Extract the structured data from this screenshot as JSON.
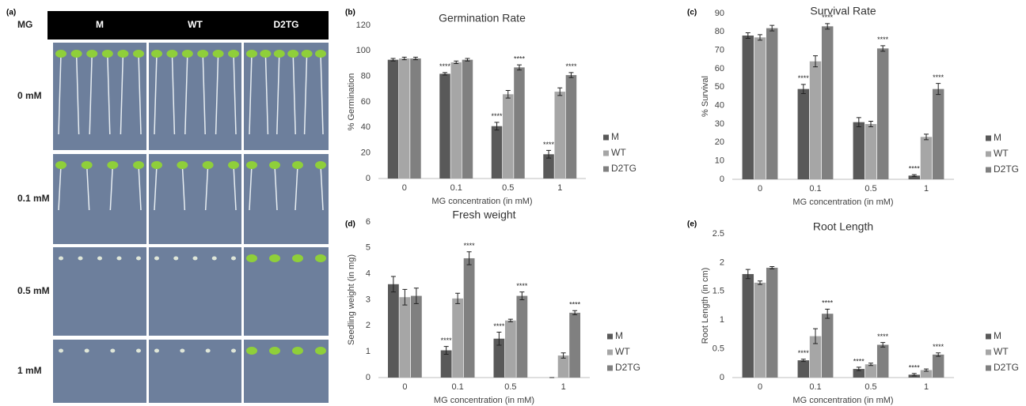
{
  "photo_panel": {
    "label": "(a)",
    "corner": "MG",
    "columns": [
      "M",
      "WT",
      "D2TG"
    ],
    "rows": [
      "0 mM",
      "0.1 mM",
      "0.5 mM",
      "1 mM"
    ]
  },
  "chart_data": [
    {
      "type": "bar",
      "panel_label": "(b)",
      "title": "Germination Rate",
      "x_label": "MG concentration (in mM)",
      "y_label": "% Germination",
      "categories": [
        "0",
        "0.1",
        "0.5",
        "1"
      ],
      "series": [
        {
          "name": "M",
          "color": "#595959",
          "values": [
            93,
            82,
            41,
            19
          ],
          "errors": [
            1,
            1,
            3,
            3
          ],
          "significance": [
            null,
            "****",
            "****",
            "****"
          ]
        },
        {
          "name": "WT",
          "color": "#a6a6a6",
          "values": [
            94,
            91,
            66,
            68
          ],
          "errors": [
            1,
            1,
            3,
            3
          ],
          "significance": [
            null,
            null,
            null,
            null
          ]
        },
        {
          "name": "D2TG",
          "color": "#808080",
          "values": [
            94,
            93,
            87,
            81
          ],
          "errors": [
            1,
            1,
            2,
            2
          ],
          "significance": [
            null,
            null,
            "****",
            "****"
          ]
        }
      ],
      "ylim": [
        0,
        120
      ],
      "yticks": [
        0,
        20,
        40,
        60,
        80,
        100,
        120
      ],
      "grid": false,
      "legend": "right"
    },
    {
      "type": "bar",
      "panel_label": "(c)",
      "title": "Survival Rate",
      "x_label": "MG concentration (in mM)",
      "y_label": "% Survival",
      "categories": [
        "0",
        "0.1",
        "0.5",
        "1"
      ],
      "series": [
        {
          "name": "M",
          "color": "#595959",
          "values": [
            78,
            49,
            31,
            2
          ],
          "errors": [
            1.5,
            2.5,
            2.5,
            0.5
          ],
          "significance": [
            null,
            "****",
            null,
            "****"
          ]
        },
        {
          "name": "WT",
          "color": "#a6a6a6",
          "values": [
            77,
            64,
            30,
            23
          ],
          "errors": [
            1.5,
            3,
            1.5,
            1.5
          ],
          "significance": [
            null,
            null,
            null,
            null
          ]
        },
        {
          "name": "D2TG",
          "color": "#808080",
          "values": [
            82,
            83,
            71,
            49
          ],
          "errors": [
            1.5,
            1.5,
            1.5,
            3
          ],
          "significance": [
            null,
            "****",
            "****",
            "****"
          ]
        }
      ],
      "ylim": [
        0,
        90
      ],
      "yticks": [
        0,
        10,
        20,
        30,
        40,
        50,
        60,
        70,
        80,
        90
      ],
      "grid": false,
      "legend": "right"
    },
    {
      "type": "bar",
      "panel_label": "(d)",
      "title": "Fresh weight",
      "x_label": "MG concentration (in mM)",
      "y_label": "Seedling weight (in mg)",
      "categories": [
        "0",
        "0.1",
        "0.5",
        "1"
      ],
      "series": [
        {
          "name": "M",
          "color": "#595959",
          "values": [
            3.6,
            1.05,
            1.5,
            0
          ],
          "errors": [
            0.3,
            0.15,
            0.25,
            0
          ],
          "significance": [
            null,
            "****",
            "****",
            null
          ]
        },
        {
          "name": "WT",
          "color": "#a6a6a6",
          "values": [
            3.1,
            3.05,
            2.2,
            0.85
          ],
          "errors": [
            0.3,
            0.2,
            0.05,
            0.1
          ],
          "significance": [
            null,
            null,
            null,
            null
          ]
        },
        {
          "name": "D2TG",
          "color": "#808080",
          "values": [
            3.15,
            4.6,
            3.15,
            2.5
          ],
          "errors": [
            0.3,
            0.25,
            0.15,
            0.08
          ],
          "significance": [
            null,
            "****",
            "****",
            "****"
          ]
        }
      ],
      "ylim": [
        0,
        6
      ],
      "yticks": [
        0,
        1,
        2,
        3,
        4,
        5,
        6
      ],
      "grid": false,
      "legend": "right"
    },
    {
      "type": "bar",
      "panel_label": "(e)",
      "title": "Root Length",
      "x_label": "MG concentration (in mM)",
      "y_label": "Root Length (in cm)",
      "categories": [
        "0",
        "0.1",
        "0.5",
        "1"
      ],
      "series": [
        {
          "name": "M",
          "color": "#595959",
          "values": [
            1.8,
            0.3,
            0.15,
            0.05
          ],
          "errors": [
            0.08,
            0.02,
            0.03,
            0.02
          ],
          "significance": [
            null,
            "****",
            "****",
            "****"
          ]
        },
        {
          "name": "WT",
          "color": "#a6a6a6",
          "values": [
            1.65,
            0.72,
            0.23,
            0.13
          ],
          "errors": [
            0.03,
            0.13,
            0.02,
            0.02
          ],
          "significance": [
            null,
            null,
            null,
            null
          ]
        },
        {
          "name": "D2TG",
          "color": "#808080",
          "values": [
            1.91,
            1.11,
            0.57,
            0.4
          ],
          "errors": [
            0.02,
            0.08,
            0.04,
            0.03
          ],
          "significance": [
            null,
            "****",
            "****",
            "****"
          ]
        }
      ],
      "ylim": [
        0,
        2.5
      ],
      "yticks": [
        0,
        0.5,
        1,
        1.5,
        2,
        2.5
      ],
      "grid": false,
      "legend": "right"
    }
  ]
}
